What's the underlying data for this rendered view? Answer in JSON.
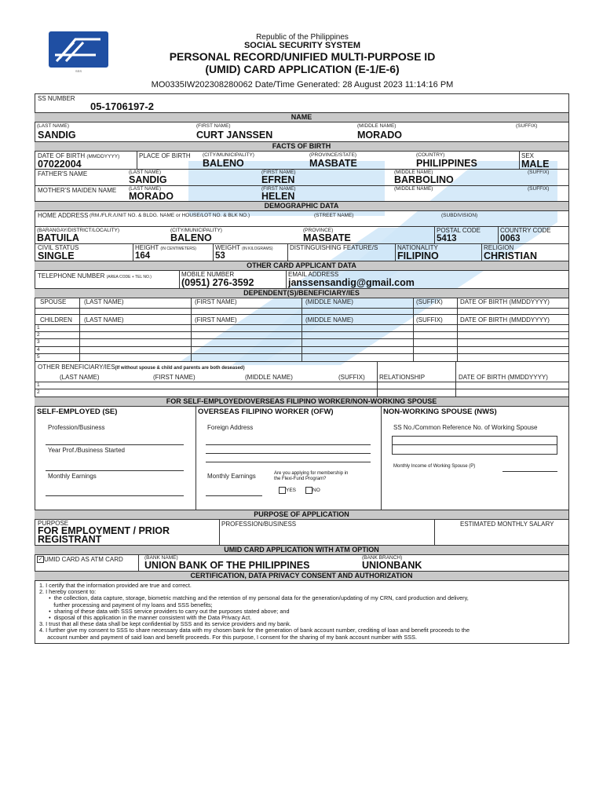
{
  "header": {
    "logo_text": "SSS",
    "republic": "Republic of the Philippines",
    "agency": "SOCIAL SECURITY SYSTEM",
    "title_line1": "PERSONAL RECORD/UNIFIED MULTI-PURPOSE ID",
    "title_line2": "(UMID) CARD APPLICATION (E-1/E-6)",
    "reference": "MO0335IW202308280062  Date/Time Generated: 28 August 2023 11:14:16 PM"
  },
  "ss": {
    "label": "SS NUMBER",
    "value": "05-1706197-2"
  },
  "name": {
    "section": "NAME",
    "last_label": "(LAST NAME)",
    "first_label": "(FIRST NAME)",
    "middle_label": "(MIDDLE NAME)",
    "suffix_label": "(SUFFIX)",
    "last": "SANDIG",
    "first": "CURT JANSSEN",
    "middle": "MORADO"
  },
  "birth": {
    "section": "FACTS OF BIRTH",
    "dob_label": "DATE OF BIRTH",
    "dob_fmt": "(MMDDYYYY)",
    "dob": "07022004",
    "pob_label": "PLACE OF BIRTH",
    "city_label": "(CITY/MUNICIPALITY)",
    "city": "BALENO",
    "province_label": "(PROVINCE/STATE)",
    "province": "MASBATE",
    "country_label": "(COUNTRY)",
    "country": "PHILIPPINES",
    "sex_label": "SEX",
    "sex": "MALE",
    "father_label": "FATHER'S NAME",
    "father_last": "SANDIG",
    "father_first": "EFREN",
    "father_middle": "BARBOLINO",
    "mother_label": "MOTHER'S MAIDEN NAME",
    "mother_last": "MORADO",
    "mother_first": "HELEN",
    "last_label": "(LAST NAME)",
    "first_label": "(FIRST NAME)",
    "middle_label": "(MIDDLE NAME)",
    "suffix_label": "(SUFFIX)"
  },
  "demographic": {
    "section": "DEMOGRAPHIC DATA",
    "home_label": "HOME ADDRESS",
    "unit_label": "(RM./FLR./UNIT NO. & BLDG. NAME or HOUSE/LOT NO. & BLK NO.)",
    "street_label": "(STREET NAME)",
    "subdivision_label": "(SUBDIVISION)",
    "barangay_label": "(BARANGAY/DISTRICT/LOCALITY)",
    "barangay": "BATUILA",
    "city_label": "(CITY/MUNICIPALITY)",
    "city": "BALENO",
    "province_label": "(PROVINCE)",
    "province": "MASBATE",
    "postal_label": "POSTAL CODE",
    "postal": "5413",
    "country_code_label": "COUNTRY CODE",
    "country_code": "0063",
    "civil_label": "CIVIL STATUS",
    "civil": "SINGLE",
    "height_label": "HEIGHT",
    "height_unit": "(IN CENTIMETERS)",
    "height": "164",
    "weight_label": "WEIGHT",
    "weight_unit": "(IN KILOGRAMS)",
    "weight": "53",
    "features_label": "DISTINGUISHING FEATURE/S",
    "nationality_label": "NATIONALITY",
    "nationality": "FILIPINO",
    "religion_label": "RELIGION",
    "religion": "CHRISTIAN"
  },
  "other": {
    "section": "OTHER CARD APPLICANT DATA",
    "tel_label": "TELEPHONE NUMBER",
    "tel_hint": "(AREA CODE + TEL NO.)",
    "mobile_label": "MOBILE NUMBER",
    "mobile": "(0951) 276-3592",
    "email_label": "EMAIL ADDRESS",
    "email": "janssensandig@gmail.com"
  },
  "dependents": {
    "section": "DEPENDENT(S)/BENEFICIARY/IES",
    "spouse": "SPOUSE",
    "children": "CHILDREN",
    "last": "(LAST NAME)",
    "first": "(FIRST NAME)",
    "middle": "(MIDDLE NAME)",
    "suffix": "(SUFFIX)",
    "dob": "DATE OF BIRTH (MMDDYYYY)",
    "rows": [
      "1",
      "2",
      "3",
      "4",
      "5"
    ],
    "other_label": "OTHER BENEFICIARY/IES",
    "other_note": "(If without spouse & child and parents are both deseased)",
    "relationship": "RELATIONSHIP",
    "other_rows": [
      "1",
      "2"
    ]
  },
  "employment": {
    "section": "FOR SELF-EMPLOYED/OVERSEAS FILIPINO WORKER/NON-WORKING SPOUSE",
    "se_title": "SELF-EMPLOYED (SE)",
    "se_profession": "Profession/Business",
    "se_year": "Year Prof./Business Started",
    "se_earnings": "Monthly Earnings",
    "ofw_title": "OVERSEAS FILIPINO WORKER (OFW)",
    "ofw_address": "Foreign Address",
    "ofw_earnings": "Monthly Earnings",
    "ofw_flexi_q1": "Are you applying for membership in",
    "ofw_flexi_q2": "the Flexi-Fund Program?",
    "yes": "YES",
    "no": "NO",
    "nws_title": "NON-WORKING SPOUSE (NWS)",
    "nws_ss": "SS No./Common Reference No. of Working Spouse",
    "nws_income": "Monthly Income of Working Spouse (P)"
  },
  "purpose": {
    "section": "PURPOSE OF APPLICATION",
    "purpose_label": "PURPOSE",
    "purpose_line1": "FOR EMPLOYMENT / PRIOR",
    "purpose_line2": "REGISTRANT",
    "profession_label": "PROFESSION/BUSINESS",
    "salary_label": "ESTIMATED MONTHLY SALARY"
  },
  "atm": {
    "section": "UMID CARD APPLICATION WITH ATM OPTION",
    "checkbox_label": "UMID CARD AS ATM CARD",
    "checked": true,
    "bank_label": "(BANK NAME)",
    "bank": "UNION BANK OF THE PHILIPPINES",
    "branch_label": "(BANK BRANCH)",
    "branch": "UNIONBANK"
  },
  "certification": {
    "section": "CERTIFICATION, DATA PRIVACY CONSENT AND AUTHORIZATION",
    "lines": [
      "1.  I certify that the information provided are true and correct.",
      "2.  I hereby consent to:",
      "      •  the collection, data capture, storage, biometric matching and the retention of my personal data for the generation/updating of my CRN, card production and delivery,",
      "         further processing and payment of my loans and SSS benefits;",
      "      •  sharing of these data with SSS service providers to carry out the purposes stated above; and",
      "      •  disposal of this application in the manner consistent with the Data Privacy Act.",
      "3.  I trust that all these data shall be kept confidential by SSS and its service providers and my bank.",
      "4.  I further give my consent to SSS to share necessary data with my chosen bank for the generation of bank account number, crediting of loan and benefit proceeds to the",
      "     account number and payment of said loan and benefit proceeds. For this purpose, I consent for the sharing of my bank account number with SSS."
    ]
  },
  "colors": {
    "logo_blue": "#1f4fa3",
    "watermark_blue": "#cfe6f8",
    "section_gray": "#c9c9c9"
  }
}
